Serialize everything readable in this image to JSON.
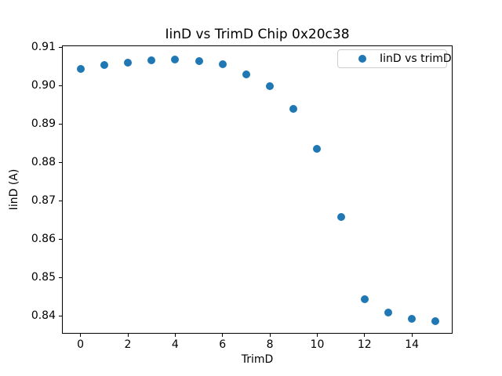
{
  "figure": {
    "background": "#ffffff"
  },
  "chart_data": {
    "type": "scatter",
    "title": "IinD vs TrimD Chip 0x20c38",
    "xlabel": "TrimD",
    "ylabel": "IinD (A)",
    "x": [
      0,
      1,
      2,
      3,
      4,
      5,
      6,
      7,
      8,
      9,
      10,
      11,
      12,
      13,
      14,
      15
    ],
    "series": [
      {
        "name": "IinD vs trimD",
        "color": "#1f77b4",
        "values": [
          0.9045,
          0.9055,
          0.9062,
          0.9067,
          0.907,
          0.9065,
          0.9056,
          0.9031,
          0.8999,
          0.894,
          0.8837,
          0.8658,
          0.8443,
          0.8409,
          0.8393,
          0.8386
        ]
      }
    ],
    "xlim": [
      -0.75,
      15.75
    ],
    "ylim": [
      0.8352,
      0.9104
    ],
    "xticks": [
      0,
      2,
      4,
      6,
      8,
      10,
      12,
      14
    ],
    "yticks": [
      0.84,
      0.85,
      0.86,
      0.87,
      0.88,
      0.89,
      0.9,
      0.91
    ],
    "ytick_decimals": 2,
    "grid": false,
    "legend": {
      "label": "IinD vs trimD",
      "position": "upper right",
      "marker_color": "#1f77b4"
    }
  }
}
